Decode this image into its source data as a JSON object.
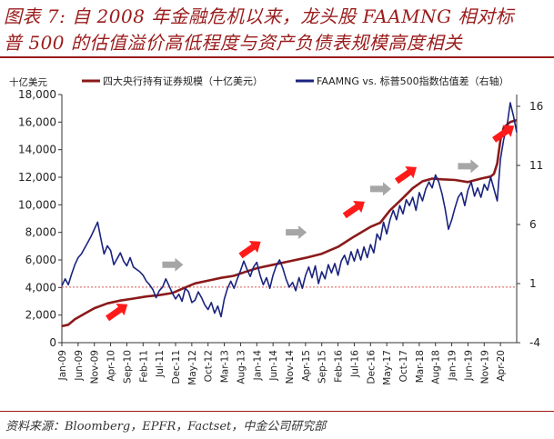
{
  "header": {
    "title_line1": "图表 7: 自 2008 年金融危机以来，龙头股 FAAMNG 相对标",
    "title_line2": "普 500 的估值溢价高低程度与资产负债表规模高度相关"
  },
  "footer": {
    "source": "资料来源：Bloomberg，EPFR，Factset，中金公司研究部"
  },
  "chart_data": {
    "type": "line",
    "left_axis": {
      "unit_label": "十亿美元",
      "ylim": [
        0,
        18000
      ],
      "ticks": [
        0,
        2000,
        4000,
        6000,
        8000,
        10000,
        12000,
        14000,
        16000,
        18000
      ],
      "tick_labels": [
        "0",
        "2,000",
        "4,000",
        "6,000",
        "8,000",
        "10,000",
        "12,000",
        "14,000",
        "16,000",
        "18,000"
      ]
    },
    "right_axis": {
      "ylim": [
        -4,
        17
      ],
      "ticks": [
        -4,
        1,
        6,
        11,
        16
      ],
      "tick_labels": [
        "-4",
        "1",
        "6",
        "11",
        "16"
      ]
    },
    "x_axis": {
      "range": [
        "2009-01",
        "2020-09"
      ],
      "tick_labels": [
        "Jan-09",
        "Jun-09",
        "Nov-09",
        "Apr-10",
        "Sep-10",
        "Feb-11",
        "Jul-11",
        "Dec-11",
        "May-12",
        "Oct-12",
        "Mar-13",
        "Aug-13",
        "Jan-14",
        "Jun-14",
        "Nov-14",
        "Apr-15",
        "Sep-15",
        "Feb-16",
        "Jul-16",
        "Dec-16",
        "May-17",
        "Oct-17",
        "Mar-18",
        "Aug-18",
        "Jan-19",
        "Jun-19",
        "Nov-19",
        "Apr-20"
      ]
    },
    "reference_line": {
      "axis": "right",
      "value": 0.7,
      "color": "#d9534f",
      "style": "dotted"
    },
    "series": [
      {
        "name": "四大央行持有证券规模（十亿美元）",
        "axis": "left",
        "color": "#8b1a1a",
        "points": [
          [
            "2009-01",
            1200
          ],
          [
            "2009-03",
            1300
          ],
          [
            "2009-05",
            1700
          ],
          [
            "2009-08",
            2100
          ],
          [
            "2009-11",
            2500
          ],
          [
            "2010-03",
            2850
          ],
          [
            "2010-07",
            3050
          ],
          [
            "2010-11",
            3200
          ],
          [
            "2011-03",
            3350
          ],
          [
            "2011-07",
            3450
          ],
          [
            "2011-11",
            3600
          ],
          [
            "2012-02",
            3900
          ],
          [
            "2012-06",
            4300
          ],
          [
            "2012-11",
            4550
          ],
          [
            "2013-02",
            4700
          ],
          [
            "2013-06",
            4850
          ],
          [
            "2013-09",
            5100
          ],
          [
            "2014-01",
            5400
          ],
          [
            "2014-06",
            5650
          ],
          [
            "2014-11",
            5900
          ],
          [
            "2015-04",
            6150
          ],
          [
            "2015-09",
            6450
          ],
          [
            "2016-02",
            6950
          ],
          [
            "2016-07",
            7700
          ],
          [
            "2016-12",
            8400
          ],
          [
            "2017-03",
            8700
          ],
          [
            "2017-06",
            9600
          ],
          [
            "2017-10",
            10500
          ],
          [
            "2018-01",
            11200
          ],
          [
            "2018-04",
            11700
          ],
          [
            "2018-07",
            11900
          ],
          [
            "2018-10",
            11850
          ],
          [
            "2019-02",
            11800
          ],
          [
            "2019-06",
            11650
          ],
          [
            "2019-10",
            11900
          ],
          [
            "2020-01",
            12050
          ],
          [
            "2020-02",
            12250
          ],
          [
            "2020-03",
            13000
          ],
          [
            "2020-04",
            14700
          ],
          [
            "2020-05",
            15600
          ],
          [
            "2020-07",
            16000
          ],
          [
            "2020-09",
            16150
          ]
        ]
      },
      {
        "name": "FAAMNG vs. 标普500指数估值差（右轴）",
        "axis": "right",
        "color": "#1a237e",
        "points": [
          [
            "2009-01",
            0.8
          ],
          [
            "2009-02",
            1.4
          ],
          [
            "2009-03",
            0.9
          ],
          [
            "2009-04",
            1.8
          ],
          [
            "2009-05",
            2.6
          ],
          [
            "2009-06",
            3.2
          ],
          [
            "2009-07",
            3.5
          ],
          [
            "2009-08",
            4.0
          ],
          [
            "2009-09",
            4.5
          ],
          [
            "2009-10",
            5.0
          ],
          [
            "2009-11",
            5.6
          ],
          [
            "2009-12",
            6.2
          ],
          [
            "2010-01",
            4.8
          ],
          [
            "2010-02",
            3.5
          ],
          [
            "2010-03",
            4.2
          ],
          [
            "2010-04",
            3.8
          ],
          [
            "2010-05",
            2.6
          ],
          [
            "2010-06",
            3.1
          ],
          [
            "2010-07",
            3.6
          ],
          [
            "2010-08",
            2.9
          ],
          [
            "2010-09",
            2.5
          ],
          [
            "2010-10",
            3.2
          ],
          [
            "2010-11",
            2.4
          ],
          [
            "2010-12",
            2.2
          ],
          [
            "2011-01",
            2.0
          ],
          [
            "2011-02",
            1.7
          ],
          [
            "2011-03",
            1.2
          ],
          [
            "2011-04",
            0.9
          ],
          [
            "2011-05",
            0.5
          ],
          [
            "2011-06",
            -0.2
          ],
          [
            "2011-07",
            0.4
          ],
          [
            "2011-08",
            0.7
          ],
          [
            "2011-09",
            1.4
          ],
          [
            "2011-10",
            0.8
          ],
          [
            "2011-11",
            0.2
          ],
          [
            "2011-12",
            -0.3
          ],
          [
            "2012-01",
            0.1
          ],
          [
            "2012-02",
            -0.5
          ],
          [
            "2012-03",
            0.6
          ],
          [
            "2012-04",
            0.3
          ],
          [
            "2012-05",
            -0.6
          ],
          [
            "2012-06",
            -0.4
          ],
          [
            "2012-07",
            0.3
          ],
          [
            "2012-08",
            -0.2
          ],
          [
            "2012-09",
            -0.8
          ],
          [
            "2012-10",
            -1.2
          ],
          [
            "2012-11",
            -0.6
          ],
          [
            "2012-12",
            -1.5
          ],
          [
            "2013-01",
            -0.9
          ],
          [
            "2013-02",
            -1.8
          ],
          [
            "2013-03",
            -0.3
          ],
          [
            "2013-04",
            0.6
          ],
          [
            "2013-05",
            1.2
          ],
          [
            "2013-06",
            0.6
          ],
          [
            "2013-07",
            1.4
          ],
          [
            "2013-08",
            2.1
          ],
          [
            "2013-09",
            2.9
          ],
          [
            "2013-10",
            2.2
          ],
          [
            "2013-11",
            1.6
          ],
          [
            "2013-12",
            2.4
          ],
          [
            "2014-01",
            2.8
          ],
          [
            "2014-02",
            1.7
          ],
          [
            "2014-03",
            0.9
          ],
          [
            "2014-04",
            1.5
          ],
          [
            "2014-05",
            0.6
          ],
          [
            "2014-06",
            1.7
          ],
          [
            "2014-07",
            2.5
          ],
          [
            "2014-08",
            3.0
          ],
          [
            "2014-09",
            2.3
          ],
          [
            "2014-10",
            1.4
          ],
          [
            "2014-11",
            0.7
          ],
          [
            "2014-12",
            1.1
          ],
          [
            "2015-01",
            0.4
          ],
          [
            "2015-02",
            1.5
          ],
          [
            "2015-03",
            0.6
          ],
          [
            "2015-04",
            1.7
          ],
          [
            "2015-05",
            2.4
          ],
          [
            "2015-06",
            1.5
          ],
          [
            "2015-07",
            2.5
          ],
          [
            "2015-08",
            1.0
          ],
          [
            "2015-09",
            2.0
          ],
          [
            "2015-10",
            1.4
          ],
          [
            "2015-11",
            2.6
          ],
          [
            "2015-12",
            1.9
          ],
          [
            "2016-01",
            2.7
          ],
          [
            "2016-02",
            1.7
          ],
          [
            "2016-03",
            2.9
          ],
          [
            "2016-04",
            3.4
          ],
          [
            "2016-05",
            2.6
          ],
          [
            "2016-06",
            3.7
          ],
          [
            "2016-07",
            2.9
          ],
          [
            "2016-08",
            3.9
          ],
          [
            "2016-09",
            3.0
          ],
          [
            "2016-10",
            4.1
          ],
          [
            "2016-11",
            3.2
          ],
          [
            "2016-12",
            4.3
          ],
          [
            "2017-01",
            3.6
          ],
          [
            "2017-02",
            5.2
          ],
          [
            "2017-03",
            4.7
          ],
          [
            "2017-04",
            6.2
          ],
          [
            "2017-05",
            5.2
          ],
          [
            "2017-06",
            6.4
          ],
          [
            "2017-07",
            7.2
          ],
          [
            "2017-08",
            6.4
          ],
          [
            "2017-09",
            7.6
          ],
          [
            "2017-10",
            6.9
          ],
          [
            "2017-11",
            8.1
          ],
          [
            "2017-12",
            7.6
          ],
          [
            "2018-01",
            8.3
          ],
          [
            "2018-02",
            7.2
          ],
          [
            "2018-03",
            8.7
          ],
          [
            "2018-04",
            8.0
          ],
          [
            "2018-05",
            9.0
          ],
          [
            "2018-06",
            9.6
          ],
          [
            "2018-07",
            9.1
          ],
          [
            "2018-08",
            10.2
          ],
          [
            "2018-09",
            9.6
          ],
          [
            "2018-10",
            8.6
          ],
          [
            "2018-11",
            7.3
          ],
          [
            "2018-12",
            5.6
          ],
          [
            "2019-01",
            6.4
          ],
          [
            "2019-02",
            7.4
          ],
          [
            "2019-03",
            8.3
          ],
          [
            "2019-04",
            8.7
          ],
          [
            "2019-05",
            7.6
          ],
          [
            "2019-06",
            8.9
          ],
          [
            "2019-07",
            9.6
          ],
          [
            "2019-08",
            8.4
          ],
          [
            "2019-09",
            9.1
          ],
          [
            "2019-10",
            8.3
          ],
          [
            "2019-11",
            9.4
          ],
          [
            "2019-12",
            8.9
          ],
          [
            "2020-01",
            10.0
          ],
          [
            "2020-02",
            9.0
          ],
          [
            "2020-03",
            8.0
          ],
          [
            "2020-04",
            11.5
          ],
          [
            "2020-05",
            13.2
          ],
          [
            "2020-06",
            14.3
          ],
          [
            "2020-07",
            16.3
          ],
          [
            "2020-08",
            15.2
          ],
          [
            "2020-09",
            13.8
          ]
        ]
      }
    ],
    "annotations": {
      "red_arrows_rising": [
        {
          "x": "2010-06",
          "y_left": 2250
        },
        {
          "x": "2013-11",
          "y_left": 6800
        },
        {
          "x": "2016-07",
          "y_left": 9700
        },
        {
          "x": "2017-11",
          "y_left": 12200
        },
        {
          "x": "2020-05",
          "y_left": 15200
        }
      ],
      "gray_arrows_flat": [
        {
          "x": "2011-11",
          "y_left": 5650
        },
        {
          "x": "2015-01",
          "y_left": 8000
        },
        {
          "x": "2017-03",
          "y_left": 11150
        },
        {
          "x": "2019-06",
          "y_left": 12800
        }
      ],
      "red_arrow_color": "#ff1a1a",
      "gray_arrow_color": "#a6a6a6"
    }
  }
}
